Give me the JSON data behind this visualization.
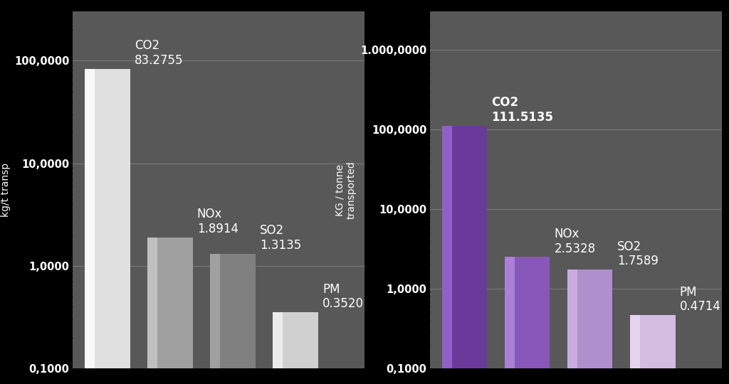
{
  "left_chart": {
    "categories": [
      "CO2",
      "NOx",
      "SO2",
      "PM"
    ],
    "values": [
      83.2755,
      1.8914,
      1.3135,
      0.352
    ],
    "bar_colors": [
      "#e0e0e0",
      "#a0a0a0",
      "#808080",
      "#d0d0d0"
    ],
    "bar_highlight_colors": [
      "#f8f8f8",
      "#c0c0c0",
      "#a0a0a0",
      "#ececec"
    ],
    "ylabel": "kg/t transp",
    "ylim_min": 0.1,
    "ylim_max": 300,
    "ytick_labels": [
      "0,1000",
      "1,0000",
      "10,0000",
      "100,0000"
    ],
    "ytick_values": [
      0.1,
      1.0,
      10.0,
      100.0
    ],
    "bg_color": "#585858",
    "text_color": "#ffffff",
    "label_fontsize": 12
  },
  "right_chart": {
    "categories": [
      "CO2",
      "NOx",
      "SO2",
      "PM"
    ],
    "values": [
      111.5135,
      2.5328,
      1.7589,
      0.4714
    ],
    "bar_colors": [
      "#6a3a9a",
      "#8858b8",
      "#b090cc",
      "#d4bce0"
    ],
    "bar_highlight_colors": [
      "#9060c8",
      "#aa80d8",
      "#c8ace0",
      "#e4d4f0"
    ],
    "ylabel": "KG / tonne\ntransported",
    "ylim_min": 0.1,
    "ylim_max": 3000,
    "ytick_labels": [
      "0,1000",
      "1,0000",
      "10,0000",
      "100,0000",
      "1.000,0000"
    ],
    "ytick_values": [
      0.1,
      1.0,
      10.0,
      100.0,
      1000.0
    ],
    "bg_color": "#585858",
    "text_color": "#ffffff",
    "label_fontsize": 12
  },
  "outer_bg": "#000000",
  "fig_width": 10.24,
  "fig_height": 5.4
}
